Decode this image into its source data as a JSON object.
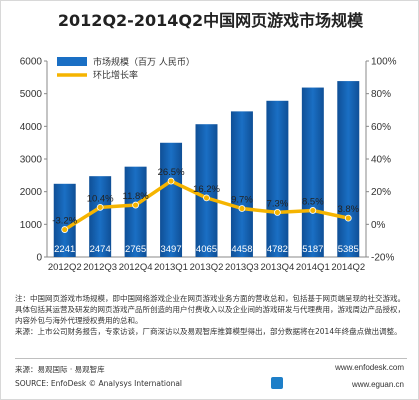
{
  "title": "2012Q2-2014Q2中国网页游戏市场规模",
  "chart_data": {
    "type": "bar",
    "categories": [
      "2012Q2",
      "2012Q3",
      "2012Q4",
      "2013Q1",
      "2013Q2",
      "2013Q3",
      "2013Q4",
      "2014Q1",
      "2014Q2"
    ],
    "series": [
      {
        "name": "市场规模（百万 人民币）",
        "type": "bar",
        "axis": "left",
        "values": [
          2241,
          2474,
          2765,
          3497,
          4065,
          4458,
          4782,
          5187,
          5385
        ],
        "labels": [
          "2241",
          "2474",
          "2765",
          "3497",
          "4065",
          "4458",
          "4782",
          "5187",
          "5385"
        ]
      },
      {
        "name": "环比增长率",
        "type": "line",
        "axis": "right",
        "values": [
          -3.2,
          10.4,
          11.8,
          26.5,
          16.2,
          9.7,
          7.3,
          8.5,
          3.8
        ],
        "labels": [
          "-3.2%",
          "10.4%",
          "11.8%",
          "26.5%",
          "16.2%",
          "9.7%",
          "7.3%",
          "8.5%",
          "3.8%"
        ]
      }
    ],
    "ylim_left": [
      0,
      6000
    ],
    "yticks_left": [
      "0",
      "1000",
      "2000",
      "3000",
      "4000",
      "5000",
      "6000"
    ],
    "ylim_right": [
      -20,
      100
    ],
    "yticks_right": [
      "-20%",
      "0%",
      "20%",
      "40%",
      "60%",
      "80%",
      "100%"
    ],
    "legend_position": "top-left",
    "grid": false,
    "colors": {
      "bar": "#1a6fc4",
      "line": "#f5b400",
      "point": "#f5b400"
    }
  },
  "notes": [
    "注：中国网页游戏市场规模，即中国网络游戏企业在网页游戏业务方面的营收总和，包括基于网页端呈现的社交游戏。具体包括其运营及研发的网页游戏产品所创造的用户付费收入以及企业间的游戏研发与代理费用，游戏周边产品授权，内容外包与海外代理授权费用的总和。",
    "来源：上市公司财务报告，专家访谈，厂商深访以及易观智库推算模型得出，部分数据将在2014年终盘点做出调整。"
  ],
  "source_cn": "来源：易观国际 · 易观智库",
  "source_en": "SOURCE: EnfoDesk © Analysys International",
  "site1": "www.enfodesk.com",
  "site2": "www.eguan.cn"
}
